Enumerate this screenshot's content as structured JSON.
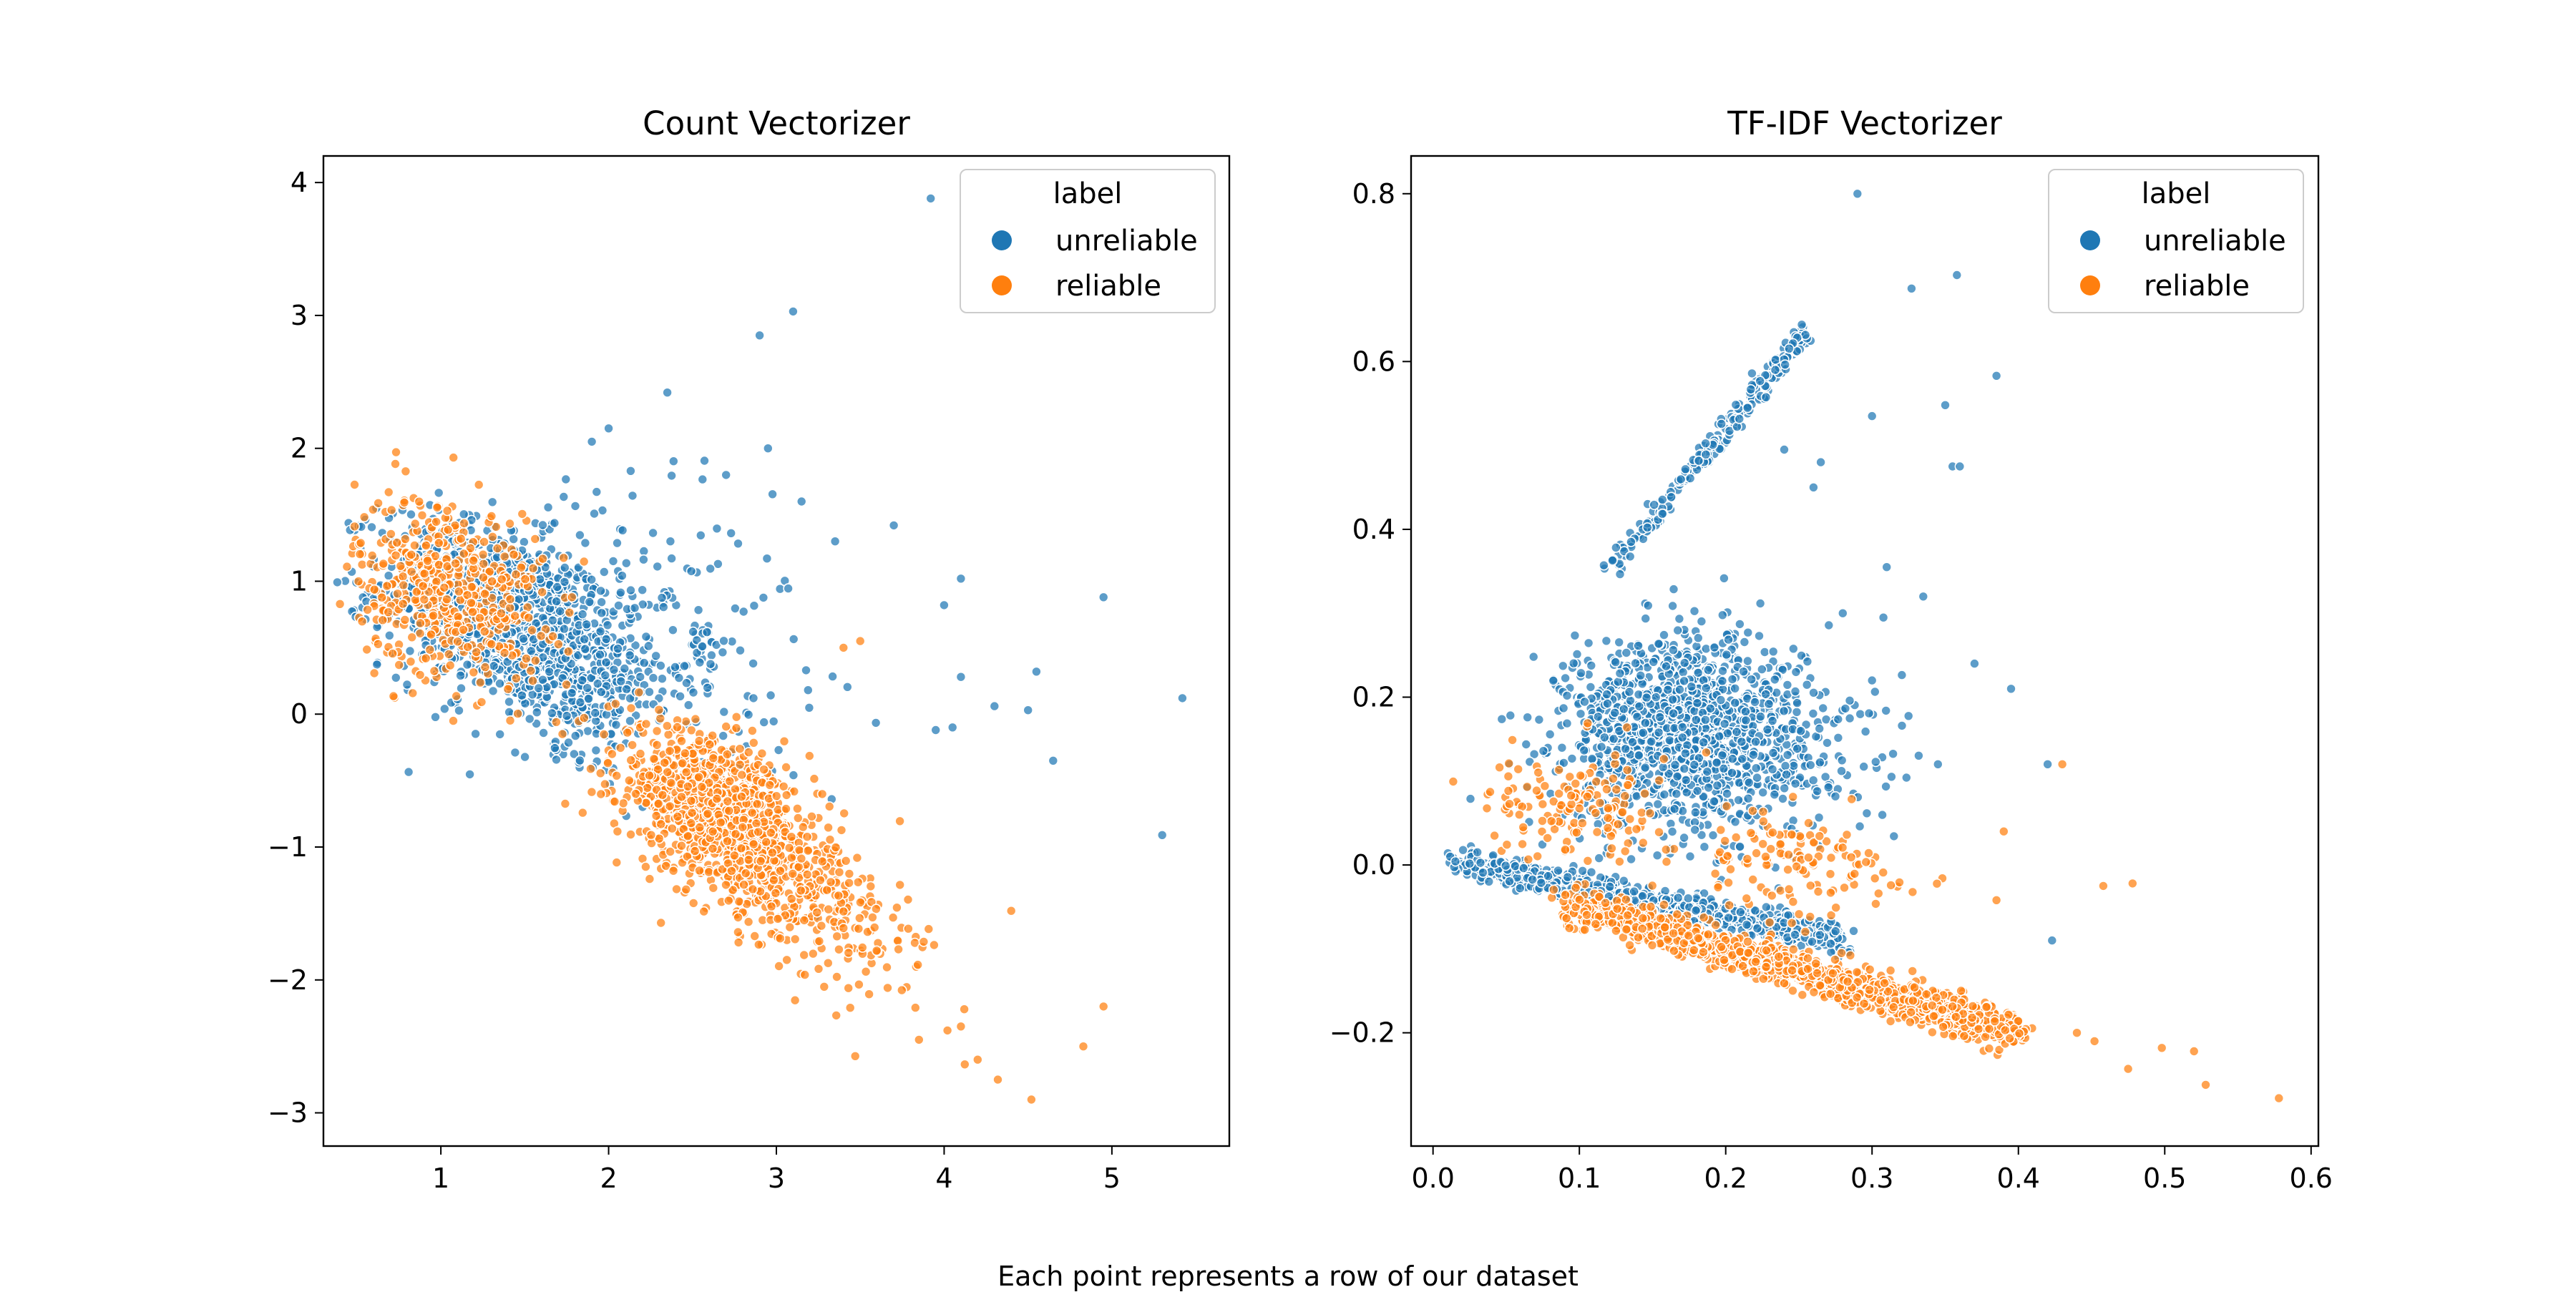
{
  "figure": {
    "caption": "Each point represents a row of our dataset"
  },
  "colors": {
    "unreliable": "#1f77b4",
    "reliable": "#ff7f0e"
  },
  "chart_data": [
    {
      "type": "scatter",
      "title": "Count Vectorizer",
      "xlabel": "",
      "ylabel": "",
      "xlim": [
        0.3,
        5.7
      ],
      "ylim": [
        -3.25,
        4.2
      ],
      "xticks": [
        1,
        2,
        3,
        4,
        5
      ],
      "yticks": [
        4,
        3,
        2,
        1,
        0,
        -1,
        -2,
        -3
      ],
      "grid": false,
      "legend": {
        "title": "label",
        "placement": "top-right",
        "entries": [
          "unreliable",
          "reliable"
        ]
      },
      "clusters": [
        {
          "series": "unreliable",
          "cx": 1.35,
          "cy": 0.75,
          "sx": 0.35,
          "sy": 0.35,
          "rho": -0.35,
          "n": 1100
        },
        {
          "series": "unreliable",
          "cx": 1.85,
          "cy": 0.25,
          "sx": 0.2,
          "sy": 0.28,
          "rho": -0.2,
          "n": 250
        },
        {
          "series": "unreliable",
          "cx": 2.3,
          "cy": 0.5,
          "sx": 0.45,
          "sy": 0.6,
          "rho": -0.3,
          "n": 240
        },
        {
          "series": "reliable",
          "cx": 1.05,
          "cy": 0.95,
          "sx": 0.28,
          "sy": 0.35,
          "rho": -0.2,
          "n": 480
        },
        {
          "series": "reliable",
          "cx": 2.65,
          "cy": -0.75,
          "sx": 0.3,
          "sy": 0.32,
          "rho": -0.55,
          "n": 1000
        },
        {
          "series": "reliable",
          "cx": 3.05,
          "cy": -1.25,
          "sx": 0.3,
          "sy": 0.28,
          "rho": -0.4,
          "n": 260
        },
        {
          "series": "reliable",
          "cx": 3.55,
          "cy": -1.75,
          "sx": 0.22,
          "sy": 0.3,
          "rho": -0.4,
          "n": 60
        }
      ],
      "outliers": [
        {
          "series": "unreliable",
          "x": [
            3.92,
            3.1,
            2.9,
            2.35,
            2.0,
            1.9,
            3.15,
            3.35,
            3.7,
            4.1,
            4.95,
            4.0,
            4.1,
            4.55,
            4.3,
            4.65,
            5.42,
            5.3,
            4.5,
            3.95,
            4.05,
            2.95,
            2.7
          ],
          "y": [
            3.88,
            3.03,
            2.85,
            2.42,
            2.15,
            2.05,
            1.6,
            1.3,
            1.42,
            1.02,
            0.88,
            0.82,
            0.28,
            0.32,
            0.06,
            -0.35,
            0.12,
            -0.91,
            0.03,
            -0.12,
            -0.1,
            2.0,
            1.8
          ]
        },
        {
          "series": "reliable",
          "x": [
            4.52,
            4.32,
            4.83,
            4.95,
            4.12,
            3.85,
            4.02,
            4.1,
            4.4,
            4.2,
            3.4,
            3.5
          ],
          "y": [
            -2.9,
            -2.75,
            -2.5,
            -2.2,
            -2.22,
            -2.45,
            -2.38,
            -2.35,
            -1.48,
            -2.6,
            0.5,
            0.55
          ]
        }
      ]
    },
    {
      "type": "scatter",
      "title": "TF-IDF Vectorizer",
      "xlabel": "",
      "ylabel": "",
      "xlim": [
        -0.015,
        0.605
      ],
      "ylim": [
        -0.335,
        0.845
      ],
      "xticks": [
        0.0,
        0.1,
        0.2,
        0.3,
        0.4,
        0.5,
        0.6
      ],
      "yticks": [
        0.8,
        0.6,
        0.4,
        0.2,
        0.0,
        -0.2
      ],
      "grid": false,
      "legend": {
        "title": "label",
        "placement": "top-right",
        "entries": [
          "unreliable",
          "reliable"
        ]
      },
      "clusters": [
        {
          "series": "unreliable",
          "cx": 0.17,
          "cy": 0.16,
          "sx": 0.04,
          "sy": 0.055,
          "rho": 0.0,
          "n": 1300
        },
        {
          "series": "unreliable",
          "cx": 0.24,
          "cy": 0.14,
          "sx": 0.04,
          "sy": 0.06,
          "rho": 0.0,
          "n": 160
        },
        {
          "series": "reliable",
          "cx": 0.1,
          "cy": 0.07,
          "sx": 0.03,
          "sy": 0.03,
          "rho": 0.0,
          "n": 150
        },
        {
          "series": "reliable",
          "cx": 0.25,
          "cy": 0.0,
          "sx": 0.035,
          "sy": 0.03,
          "rho": 0.0,
          "n": 130
        }
      ],
      "lines": [
        {
          "series": "unreliable",
          "x0": 0.015,
          "y0": 0.005,
          "x1": 0.28,
          "y1": -0.09,
          "spread": 0.008,
          "n": 900
        },
        {
          "series": "reliable",
          "x0": 0.09,
          "y0": -0.045,
          "x1": 0.4,
          "y1": -0.2,
          "spread": 0.011,
          "n": 1500
        },
        {
          "series": "unreliable",
          "x0": 0.12,
          "y0": 0.35,
          "x1": 0.255,
          "y1": 0.635,
          "spread": 0.006,
          "n": 230
        }
      ],
      "outliers": [
        {
          "series": "unreliable",
          "x": [
            0.29,
            0.358,
            0.327,
            0.385,
            0.35,
            0.3,
            0.355,
            0.36,
            0.24,
            0.265,
            0.26,
            0.31,
            0.335,
            0.37,
            0.42,
            0.423,
            0.395,
            0.345,
            0.3,
            0.28
          ],
          "y": [
            0.8,
            0.703,
            0.687,
            0.583,
            0.548,
            0.535,
            0.475,
            0.475,
            0.495,
            0.48,
            0.45,
            0.355,
            0.32,
            0.24,
            0.12,
            -0.09,
            0.21,
            0.12,
            0.22,
            0.3
          ]
        },
        {
          "series": "reliable",
          "x": [
            0.578,
            0.528,
            0.52,
            0.498,
            0.475,
            0.458,
            0.452,
            0.478,
            0.44,
            0.385,
            0.39,
            0.43
          ],
          "y": [
            -0.278,
            -0.262,
            -0.222,
            -0.218,
            -0.243,
            -0.025,
            -0.21,
            -0.022,
            -0.2,
            -0.042,
            0.04,
            0.12
          ]
        }
      ]
    }
  ]
}
